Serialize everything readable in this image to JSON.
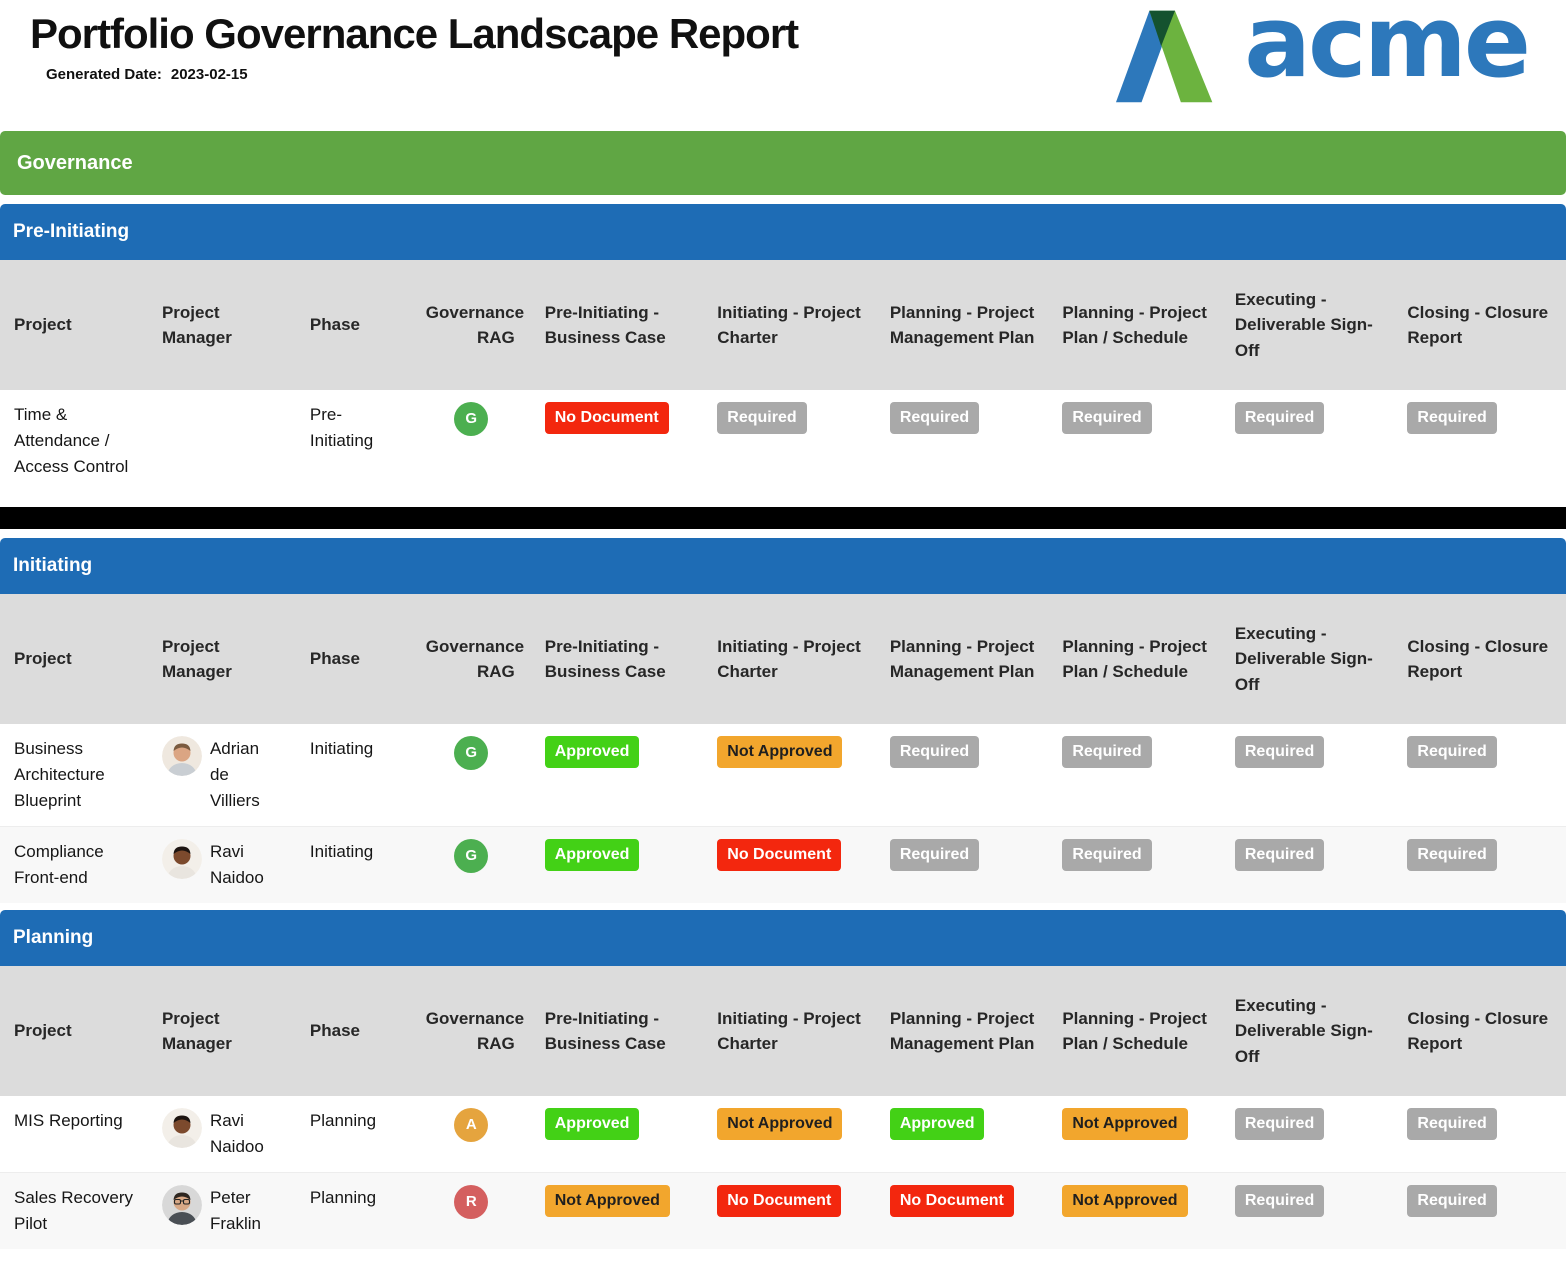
{
  "page": {
    "title": "Portfolio Governance Landscape Report",
    "generated_label": "Generated Date:",
    "generated_date": "2023-02-15"
  },
  "logo": {
    "text": "acme"
  },
  "governance_bar_label": "Governance",
  "columns": [
    "Project",
    "Project Manager",
    "Phase",
    "Governance RAG",
    "Pre-Initiating - Business Case",
    "Initiating - Project Charter",
    "Planning - Project Management Plan",
    "Planning - Project Plan / Schedule",
    "Executing - Deliverable Sign-Off",
    "Closing - Closure Report"
  ],
  "sections": [
    {
      "title": "Pre-Initiating",
      "clipped": true,
      "rows": [
        {
          "project": "Time & Attendance / Access Control",
          "manager": "",
          "avatar": "",
          "phase": "Pre-Initiating",
          "rag": "G",
          "statuses": [
            "No Document",
            "Required",
            "Required",
            "Required",
            "Required",
            "Required"
          ]
        }
      ]
    },
    {
      "title": "Initiating",
      "clipped": false,
      "rows": [
        {
          "project": "Business Architecture Blueprint",
          "manager": "Adrian de Villiers",
          "avatar": "adrian",
          "phase": "Initiating",
          "rag": "G",
          "statuses": [
            "Approved",
            "Not Approved",
            "Required",
            "Required",
            "Required",
            "Required"
          ]
        },
        {
          "project": "Compliance Front-end",
          "manager": "Ravi Naidoo",
          "avatar": "ravi",
          "phase": "Initiating",
          "rag": "G",
          "statuses": [
            "Approved",
            "No Document",
            "Required",
            "Required",
            "Required",
            "Required"
          ]
        }
      ]
    },
    {
      "title": "Planning",
      "clipped": false,
      "rows": [
        {
          "project": "MIS Reporting",
          "manager": "Ravi Naidoo",
          "avatar": "ravi",
          "phase": "Planning",
          "rag": "A",
          "statuses": [
            "Approved",
            "Not Approved",
            "Approved",
            "Not Approved",
            "Required",
            "Required"
          ]
        },
        {
          "project": "Sales Recovery Pilot",
          "manager": "Peter Fraklin",
          "avatar": "peter",
          "phase": "Planning",
          "rag": "R",
          "statuses": [
            "Not Approved",
            "No Document",
            "No Document",
            "Not Approved",
            "Required",
            "Required"
          ]
        }
      ]
    }
  ],
  "colors": {
    "green_bar": "#60a644",
    "blue_bar": "#1e6cb5",
    "header_bg": "#dcdcdc",
    "approved": "#43d116",
    "not_approved": "#f2a62d",
    "no_document": "#f3270e",
    "required": "#a9a9a9",
    "rag_g": "#4caf50",
    "rag_a": "#e5a43e",
    "rag_r": "#d45f5f",
    "logo_blue": "#2d78bb",
    "logo_green": "#6cb33f",
    "logo_dark_green": "#14522f"
  }
}
